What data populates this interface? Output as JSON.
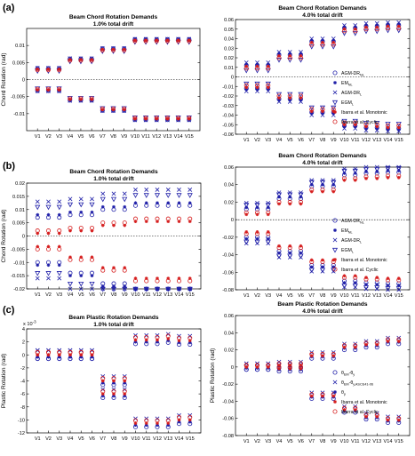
{
  "panels": [
    {
      "label": "(a)"
    },
    {
      "label": "(b)"
    },
    {
      "label": "(c)"
    }
  ],
  "colors": {
    "blue": "#1f1fa8",
    "red": "#d61f1f",
    "axes": "#000000"
  },
  "series_info": [
    {
      "key": "agm_dr",
      "name": "AGM-DR",
      "sub": "NL",
      "marker": "circle",
      "color": "#1f1fa8"
    },
    {
      "key": "em",
      "name": "EM",
      "sub": "NL",
      "marker": "star",
      "color": "#1f1fa8"
    },
    {
      "key": "agm_dr_l",
      "name": "AGM-DR",
      "sub": "L",
      "marker": "x",
      "color": "#1f1fa8"
    },
    {
      "key": "egm",
      "name": "EGM",
      "sub": "L",
      "marker": "triangle",
      "color": "#1f1fa8"
    },
    {
      "key": "ibarra_mono",
      "name": "Ibarra et al. Monotonic",
      "sub": "",
      "marker": "star",
      "color": "#d61f1f"
    },
    {
      "key": "ibarra_cyc",
      "name": "Ibarra et al. Cyclic",
      "sub": "",
      "marker": "circle",
      "color": "#d61f1f"
    }
  ],
  "legend_c": [
    {
      "key": "theta_em",
      "main": "θ",
      "sub": "EM",
      "rest": "-θ",
      "sub2": "y",
      "marker": "circle",
      "color": "#1f1fa8"
    },
    {
      "key": "theta_asce",
      "main": "θ",
      "sub": "EM",
      "rest": "-θ",
      "sub2": "y,ASCE41-06",
      "marker": "x",
      "color": "#1f1fa8"
    },
    {
      "key": "theta_p",
      "main": "θ",
      "sub": "p",
      "rest": "",
      "sub2": "",
      "marker": "star",
      "color": "#1f1fa8"
    },
    {
      "key": "ibarra_mono",
      "main": "Ibarra et al. Monotonic",
      "sub": "",
      "rest": "",
      "sub2": "",
      "marker": "star",
      "color": "#d61f1f"
    },
    {
      "key": "ibarra_cyc",
      "main": "Ibarra et al. Cyclic",
      "sub": "",
      "rest": "",
      "sub2": "",
      "marker": "circle",
      "color": "#d61f1f"
    }
  ],
  "chart_data": [
    {
      "type": "scatter",
      "panel": "(a)",
      "title": "Beam Chord Rotation Demands",
      "subtitle": "1.0% total drift",
      "xlabel": "",
      "ylabel": "Chord Rotation (rad)",
      "categories": [
        "V1",
        "V2",
        "V3",
        "V4",
        "V5",
        "V6",
        "V7",
        "V8",
        "V9",
        "V10",
        "V11",
        "V12",
        "V13",
        "V14",
        "V15"
      ],
      "ylim": [
        -0.015,
        0.015
      ],
      "yticks": [
        -0.01,
        -0.005,
        0,
        0.005,
        0.01
      ],
      "tick_labels": [
        "-0.01",
        "-0.005",
        "0",
        "0.005",
        "0.01"
      ],
      "exponent_label": "",
      "zero_line": true,
      "legend": false,
      "upper_base": [
        0.003,
        0.003,
        0.003,
        0.0058,
        0.0058,
        0.0058,
        0.0088,
        0.0088,
        0.0088,
        0.0115,
        0.0115,
        0.0115,
        0.0115,
        0.0115,
        0.0115
      ],
      "lower_base": [
        -0.003,
        -0.003,
        -0.003,
        -0.0058,
        -0.0058,
        -0.0058,
        -0.0088,
        -0.0088,
        -0.0088,
        -0.0115,
        -0.0115,
        -0.0115,
        -0.0115,
        -0.0115,
        -0.0115
      ],
      "series": [
        {
          "key": "agm_dr",
          "offset": 0.0003
        },
        {
          "key": "em",
          "offset": 0.0002
        },
        {
          "key": "agm_dr_l",
          "offset": 0.0004
        },
        {
          "key": "egm",
          "offset": -0.0004
        },
        {
          "key": "ibarra_mono",
          "offset": 0.0
        },
        {
          "key": "ibarra_cyc",
          "offset": -0.0002
        }
      ]
    },
    {
      "type": "scatter",
      "panel": "(a)",
      "title": "Beam Chord Rotation Demands",
      "subtitle": "4.0% total drift",
      "xlabel": "",
      "ylabel": "",
      "categories": [
        "V1",
        "V2",
        "V3",
        "V4",
        "V5",
        "V6",
        "V7",
        "V8",
        "V9",
        "V10",
        "V11",
        "V12",
        "V13",
        "V14",
        "V15"
      ],
      "ylim": [
        -0.06,
        0.06
      ],
      "yticks": [
        -0.06,
        -0.05,
        -0.04,
        -0.03,
        -0.02,
        -0.01,
        0,
        0.01,
        0.02,
        0.03,
        0.04,
        0.05,
        0.06
      ],
      "tick_labels": [
        "-0.06",
        "-0.05",
        "-0.04",
        "-0.03",
        "-0.02",
        "-0.01",
        "0",
        "0.01",
        "0.02",
        "0.03",
        "0.04",
        "0.05",
        "0.06"
      ],
      "exponent_label": "",
      "zero_line": true,
      "legend": true,
      "legend_position": "right",
      "upper_base": [
        0.011,
        0.011,
        0.011,
        0.022,
        0.022,
        0.022,
        0.036,
        0.036,
        0.036,
        0.05,
        0.05,
        0.052,
        0.052,
        0.053,
        0.053
      ],
      "lower_base": [
        -0.011,
        -0.011,
        -0.011,
        -0.022,
        -0.022,
        -0.022,
        -0.036,
        -0.036,
        -0.036,
        -0.05,
        -0.05,
        -0.052,
        -0.052,
        -0.053,
        -0.053
      ],
      "series": [
        {
          "key": "agm_dr",
          "offset": 0.001
        },
        {
          "key": "em",
          "offset": 0.002
        },
        {
          "key": "agm_dr_l",
          "offset": 0.004
        },
        {
          "key": "egm",
          "offset": -0.004
        },
        {
          "key": "ibarra_mono",
          "offset": 0.0
        },
        {
          "key": "ibarra_cyc",
          "offset": -0.002
        }
      ]
    },
    {
      "type": "scatter",
      "panel": "(b)",
      "title": "Beam Chord Rotation Demands",
      "subtitle": "1.0% total drift",
      "xlabel": "",
      "ylabel": "Chord Rotation (rad)",
      "categories": [
        "V1",
        "V2",
        "V3",
        "V4",
        "V5",
        "V6",
        "V7",
        "V8",
        "V9",
        "V10",
        "V11",
        "V12",
        "V13",
        "V14",
        "V15"
      ],
      "ylim": [
        -0.02,
        0.02
      ],
      "yticks": [
        -0.02,
        -0.015,
        -0.01,
        -0.005,
        0,
        0.005,
        0.01,
        0.015,
        0.02
      ],
      "tick_labels": [
        "-0.02",
        "-0.015",
        "-0.01",
        "-0.005",
        "0",
        "0.005",
        "0.01",
        "0.015",
        "0.02"
      ],
      "exponent_label": "",
      "zero_line": true,
      "legend": false,
      "upper_base": [
        0.001,
        0.001,
        0.001,
        0.002,
        0.002,
        0.002,
        0.004,
        0.004,
        0.004,
        0.0055,
        0.0055,
        0.0055,
        0.0055,
        0.0055,
        0.0055
      ],
      "lower_base": [
        -0.004,
        -0.004,
        -0.004,
        -0.008,
        -0.008,
        -0.008,
        -0.012,
        -0.012,
        -0.012,
        -0.016,
        -0.016,
        -0.016,
        -0.016,
        -0.016,
        -0.016
      ],
      "series": [
        {
          "key": "agm_dr",
          "offset": 0.006
        },
        {
          "key": "em",
          "offset": 0.007
        },
        {
          "key": "agm_dr_l",
          "offset": 0.012
        },
        {
          "key": "egm",
          "offset": 0.01
        },
        {
          "key": "ibarra_mono",
          "offset": 0.0
        },
        {
          "key": "ibarra_cyc",
          "offset": 0.001
        }
      ]
    },
    {
      "type": "scatter",
      "panel": "(b)",
      "title": "Beam Chord Rotation Demands",
      "subtitle": "4.0% total drift",
      "xlabel": "",
      "ylabel": "",
      "categories": [
        "V1",
        "V2",
        "V3",
        "V4",
        "V5",
        "V6",
        "V7",
        "V8",
        "V9",
        "V10",
        "V11",
        "V12",
        "V13",
        "V14",
        "V15"
      ],
      "ylim": [
        -0.08,
        0.06
      ],
      "yticks": [
        -0.08,
        -0.06,
        -0.04,
        -0.02,
        0,
        0.02,
        0.04,
        0.06
      ],
      "tick_labels": [
        "-0.08",
        "-0.06",
        "-0.04",
        "-0.02",
        "0",
        "0.02",
        "0.04",
        "0.06"
      ],
      "exponent_label": "",
      "zero_line": true,
      "legend": true,
      "legend_position": "right",
      "upper_base": [
        0.006,
        0.006,
        0.006,
        0.018,
        0.018,
        0.018,
        0.032,
        0.032,
        0.032,
        0.045,
        0.045,
        0.047,
        0.047,
        0.048,
        0.048
      ],
      "lower_base": [
        -0.014,
        -0.014,
        -0.014,
        -0.03,
        -0.03,
        -0.03,
        -0.046,
        -0.046,
        -0.046,
        -0.064,
        -0.064,
        -0.066,
        -0.066,
        -0.067,
        -0.067
      ],
      "series": [
        {
          "key": "agm_dr",
          "offset": 0.006
        },
        {
          "key": "em",
          "offset": 0.008
        },
        {
          "key": "agm_dr_l",
          "offset": 0.013
        },
        {
          "key": "egm",
          "offset": 0.011
        },
        {
          "key": "ibarra_mono",
          "offset": 0.0
        },
        {
          "key": "ibarra_cyc",
          "offset": 0.002
        }
      ]
    },
    {
      "type": "scatter",
      "panel": "(c)",
      "title": "Beam Plastic Rotation Demands",
      "subtitle": "1.0% total drift",
      "xlabel": "",
      "ylabel": "Plastic Rotation (rad)",
      "categories": [
        "V1",
        "V2",
        "V3",
        "V4",
        "V5",
        "V6",
        "V7",
        "V8",
        "V9",
        "V10",
        "V11",
        "V12",
        "V13",
        "V14",
        "V15"
      ],
      "ylim": [
        -12,
        4
      ],
      "yticks": [
        -12,
        -10,
        -8,
        -6,
        -4,
        -2,
        0,
        2,
        4
      ],
      "tick_labels": [
        "-12",
        "-10",
        "-8",
        "-6",
        "-4",
        "-2",
        "0",
        "2",
        "4"
      ],
      "exponent_label": "x 10",
      "exponent_power": "-3",
      "zero_line": false,
      "legend": false,
      "upper_base": [
        0,
        0,
        0,
        0,
        0,
        0,
        -4,
        -4,
        -4,
        2.3,
        2.3,
        2.3,
        2.5,
        2.2,
        2.2
      ],
      "lower_base": [
        0,
        0,
        0,
        0,
        0,
        0,
        -6,
        -6,
        -6,
        -10.5,
        -10.5,
        -10.5,
        -10.5,
        -10,
        -10
      ],
      "series": [
        {
          "key": "theta_em",
          "offset": -0.6
        },
        {
          "key": "theta_asce",
          "offset": 0.7
        },
        {
          "key": "theta_p",
          "offset": -0.3
        },
        {
          "key": "ibarra_mono",
          "offset": 0.0
        },
        {
          "key": "ibarra_cyc",
          "offset": 0.4
        }
      ]
    },
    {
      "type": "scatter",
      "panel": "(c)",
      "title": "Beam Plastic Rotation Demands",
      "subtitle": "4.0% total drift",
      "xlabel": "",
      "ylabel": "Plastic Rotation (rad)",
      "categories": [
        "V1",
        "V2",
        "V3",
        "V4",
        "V5",
        "V6",
        "V7",
        "V8",
        "V9",
        "V10",
        "V11",
        "V12",
        "V13",
        "V14",
        "V15"
      ],
      "ylim": [
        -0.08,
        0.06
      ],
      "yticks": [
        -0.08,
        -0.06,
        -0.04,
        -0.02,
        0,
        0.02,
        0.04,
        0.06
      ],
      "tick_labels": [
        "-0.08",
        "-0.06",
        "-0.04",
        "-0.02",
        "0",
        "0.02",
        "0.04",
        "0.06"
      ],
      "exponent_label": "",
      "zero_line": false,
      "legend": true,
      "legend_position": "right",
      "upper_base": [
        0,
        0,
        0,
        0.002,
        0.002,
        0.002,
        0.013,
        0.013,
        0.013,
        0.023,
        0.023,
        0.026,
        0.026,
        0.03,
        0.03
      ],
      "lower_base": [
        0,
        0,
        0,
        -0.002,
        -0.002,
        -0.002,
        -0.034,
        -0.034,
        -0.034,
        -0.05,
        -0.05,
        -0.058,
        -0.058,
        -0.062,
        -0.062
      ],
      "series": [
        {
          "key": "theta_em",
          "offset": -0.003
        },
        {
          "key": "theta_asce",
          "offset": 0.004
        },
        {
          "key": "theta_p",
          "offset": -0.001
        },
        {
          "key": "ibarra_mono",
          "offset": 0.0
        },
        {
          "key": "ibarra_cyc",
          "offset": 0.002
        }
      ]
    }
  ]
}
